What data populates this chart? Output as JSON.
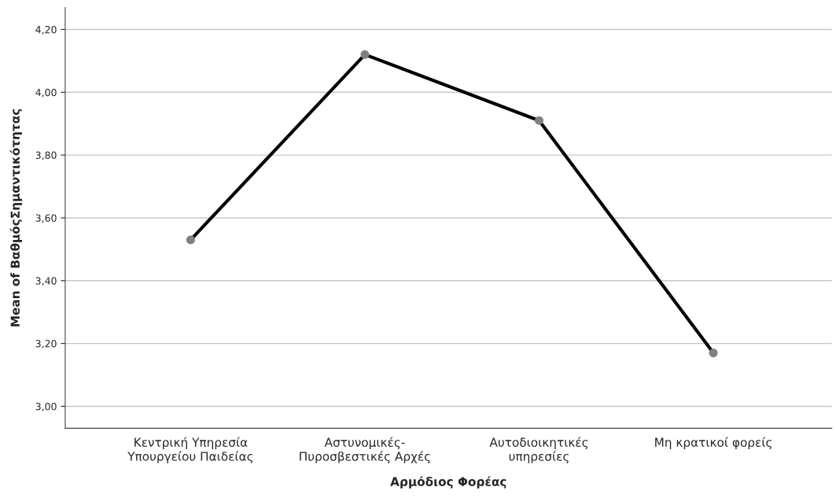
{
  "chart_data": {
    "type": "line",
    "xlabel": "Αρμόδιος Φορέας",
    "ylabel": "Mean of ΒαθμόςΣημαντικότητας",
    "categories": [
      "Κεντρική Υπηρεσία\nΥπουργείου Παιδείας",
      "Αστυνομικές-\nΠυροσβεστικές Αρχές",
      "Αυτοδιοικητικές\nυπηρεσίες",
      "Μη κρατικοί φορείς"
    ],
    "series": [
      {
        "color": "#000000",
        "values": [
          3.53,
          4.12,
          3.91,
          3.17
        ]
      }
    ],
    "ylim": [
      2.93,
      4.27
    ],
    "yticks": [
      {
        "value": 3.0,
        "label": "3,00"
      },
      {
        "value": 3.2,
        "label": "3,20"
      },
      {
        "value": 3.4,
        "label": "3,40"
      },
      {
        "value": 3.6,
        "label": "3,60"
      },
      {
        "value": 3.8,
        "label": "3,80"
      },
      {
        "value": 4.0,
        "label": "4,00"
      },
      {
        "value": 4.2,
        "label": "4,20"
      }
    ],
    "grid": "y",
    "marker": "circle",
    "line_style": "solid"
  }
}
